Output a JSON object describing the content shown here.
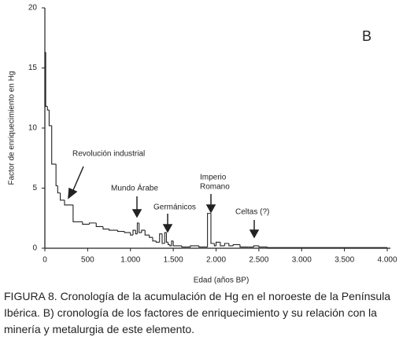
{
  "chart_data": {
    "type": "step",
    "panel_label": "B",
    "xlabel": "Edad (años BP)",
    "ylabel": "Factor de enriquecimiento en Hg",
    "xlim": [
      0,
      4000
    ],
    "ylim": [
      0,
      20
    ],
    "xticks": [
      0,
      500,
      {
        "value": 1000,
        "label": "1.000"
      },
      {
        "value": 1500,
        "label": "1.500"
      },
      {
        "value": 2000,
        "label": "2.000"
      },
      {
        "value": 2500,
        "label": "2.500"
      },
      {
        "value": 3000,
        "label": "3.000"
      },
      {
        "value": 3500,
        "label": "3.500"
      },
      {
        "value": 4000,
        "label": "4.000"
      }
    ],
    "yticks": [
      0,
      5,
      10,
      15,
      20
    ],
    "series": [
      {
        "color": "#222222",
        "x": [
          0,
          10,
          30,
          50,
          80,
          130,
          150,
          180,
          230,
          330,
          440,
          520,
          600,
          680,
          750,
          850,
          930,
          1000,
          1030,
          1060,
          1080,
          1100,
          1130,
          1170,
          1220,
          1260,
          1300,
          1340,
          1370,
          1400,
          1420,
          1440,
          1460,
          1480,
          1500,
          1600,
          1700,
          1800,
          1900,
          1940,
          1980,
          2000,
          2050,
          2100,
          2150,
          2200,
          2280,
          2380,
          2440,
          2500,
          2600
        ],
        "values": [
          16.3,
          11.8,
          11.5,
          10.2,
          7.0,
          5.2,
          4.6,
          4.0,
          3.6,
          2.2,
          2.0,
          2.1,
          1.8,
          1.6,
          1.5,
          1.4,
          1.3,
          1.1,
          1.5,
          1.2,
          2.1,
          1.3,
          1.5,
          1.1,
          0.9,
          0.6,
          0.5,
          1.2,
          0.4,
          1.3,
          0.5,
          0.3,
          0.2,
          0.6,
          0.2,
          0.1,
          0.2,
          0.1,
          2.9,
          0.4,
          0.2,
          0.5,
          0.2,
          0.4,
          0.2,
          0.3,
          0.1,
          0.1,
          0.2,
          0.1,
          0.05
        ]
      }
    ],
    "annotations": [
      "Revolución industrial",
      "Mundo Árabe",
      "Germánicos",
      "Imperio",
      "Romano",
      "Celtas (?)"
    ],
    "caption": [
      "FIGURA 8. Cronología de la acumulación de Hg en el noroeste de la Península",
      "Ibérica.  B) cronología de los factores de enriquecimiento y su relación con la",
      "minería y metalurgia de este elemento."
    ]
  }
}
